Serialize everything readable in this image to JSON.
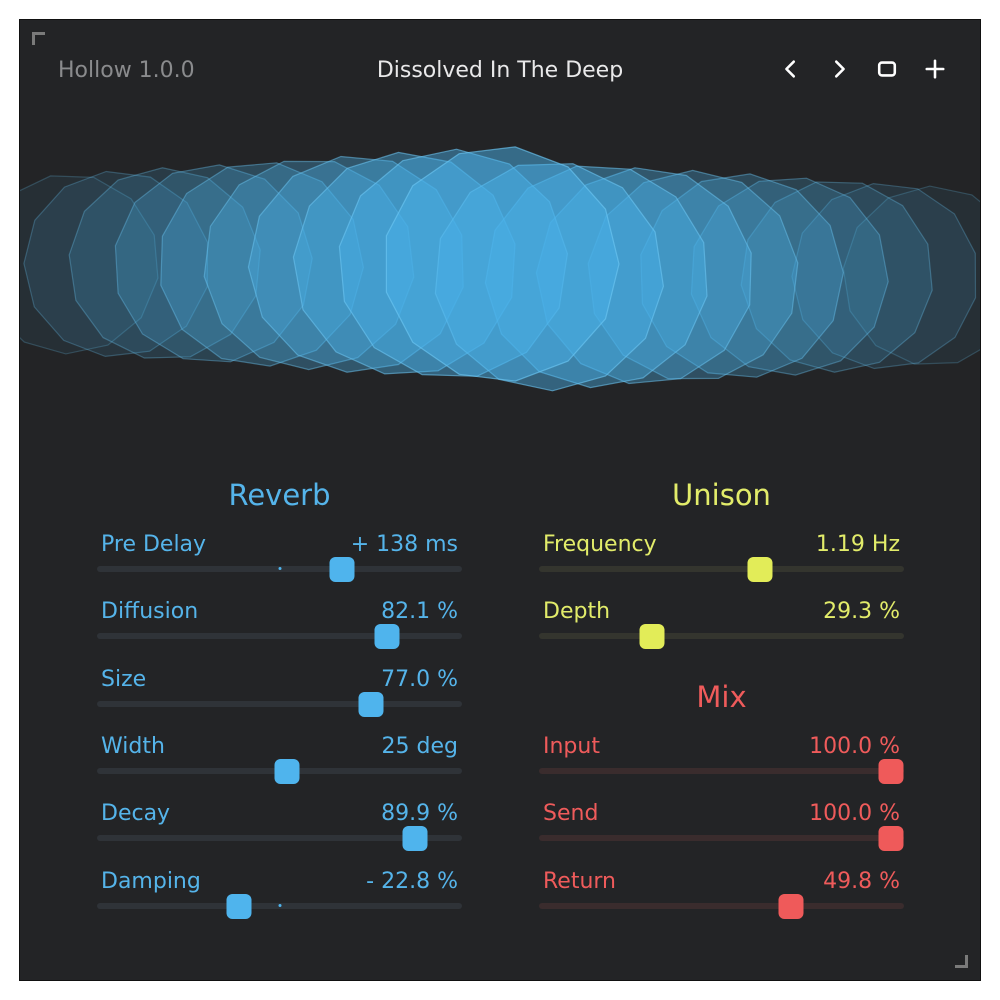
{
  "header": {
    "version": "Hollow 1.0.0",
    "preset_name": "Dissolved In The Deep",
    "icons": [
      "chevron-left-icon",
      "chevron-right-icon",
      "square-icon",
      "plus-icon"
    ]
  },
  "colors": {
    "background": "#232426",
    "reverb": "#55b4ea",
    "unison": "#e2ec6a",
    "mix": "#ef5b5b"
  },
  "reverb": {
    "title": "Reverb",
    "params": [
      {
        "label": "Pre Delay",
        "value": "+ 138 ms",
        "position": 0.67,
        "bipolar": true
      },
      {
        "label": "Diffusion",
        "value": "82.1 %",
        "position": 0.795,
        "bipolar": false
      },
      {
        "label": "Size",
        "value": "77.0 %",
        "position": 0.75,
        "bipolar": false
      },
      {
        "label": "Width",
        "value": "25 deg",
        "position": 0.52,
        "bipolar": false
      },
      {
        "label": "Decay",
        "value": "89.9 %",
        "position": 0.87,
        "bipolar": false
      },
      {
        "label": "Damping",
        "value": "- 22.8 %",
        "position": 0.39,
        "bipolar": true
      }
    ]
  },
  "unison": {
    "title": "Unison",
    "params": [
      {
        "label": "Frequency",
        "value": "1.19 Hz",
        "position": 0.605
      },
      {
        "label": "Depth",
        "value": "29.3 %",
        "position": 0.31
      }
    ]
  },
  "mix": {
    "title": "Mix",
    "params": [
      {
        "label": "Input",
        "value": "100.0 %",
        "position": 0.965
      },
      {
        "label": "Send",
        "value": "100.0 %",
        "position": 0.965
      },
      {
        "label": "Return",
        "value": "49.8 %",
        "position": 0.69
      }
    ]
  }
}
